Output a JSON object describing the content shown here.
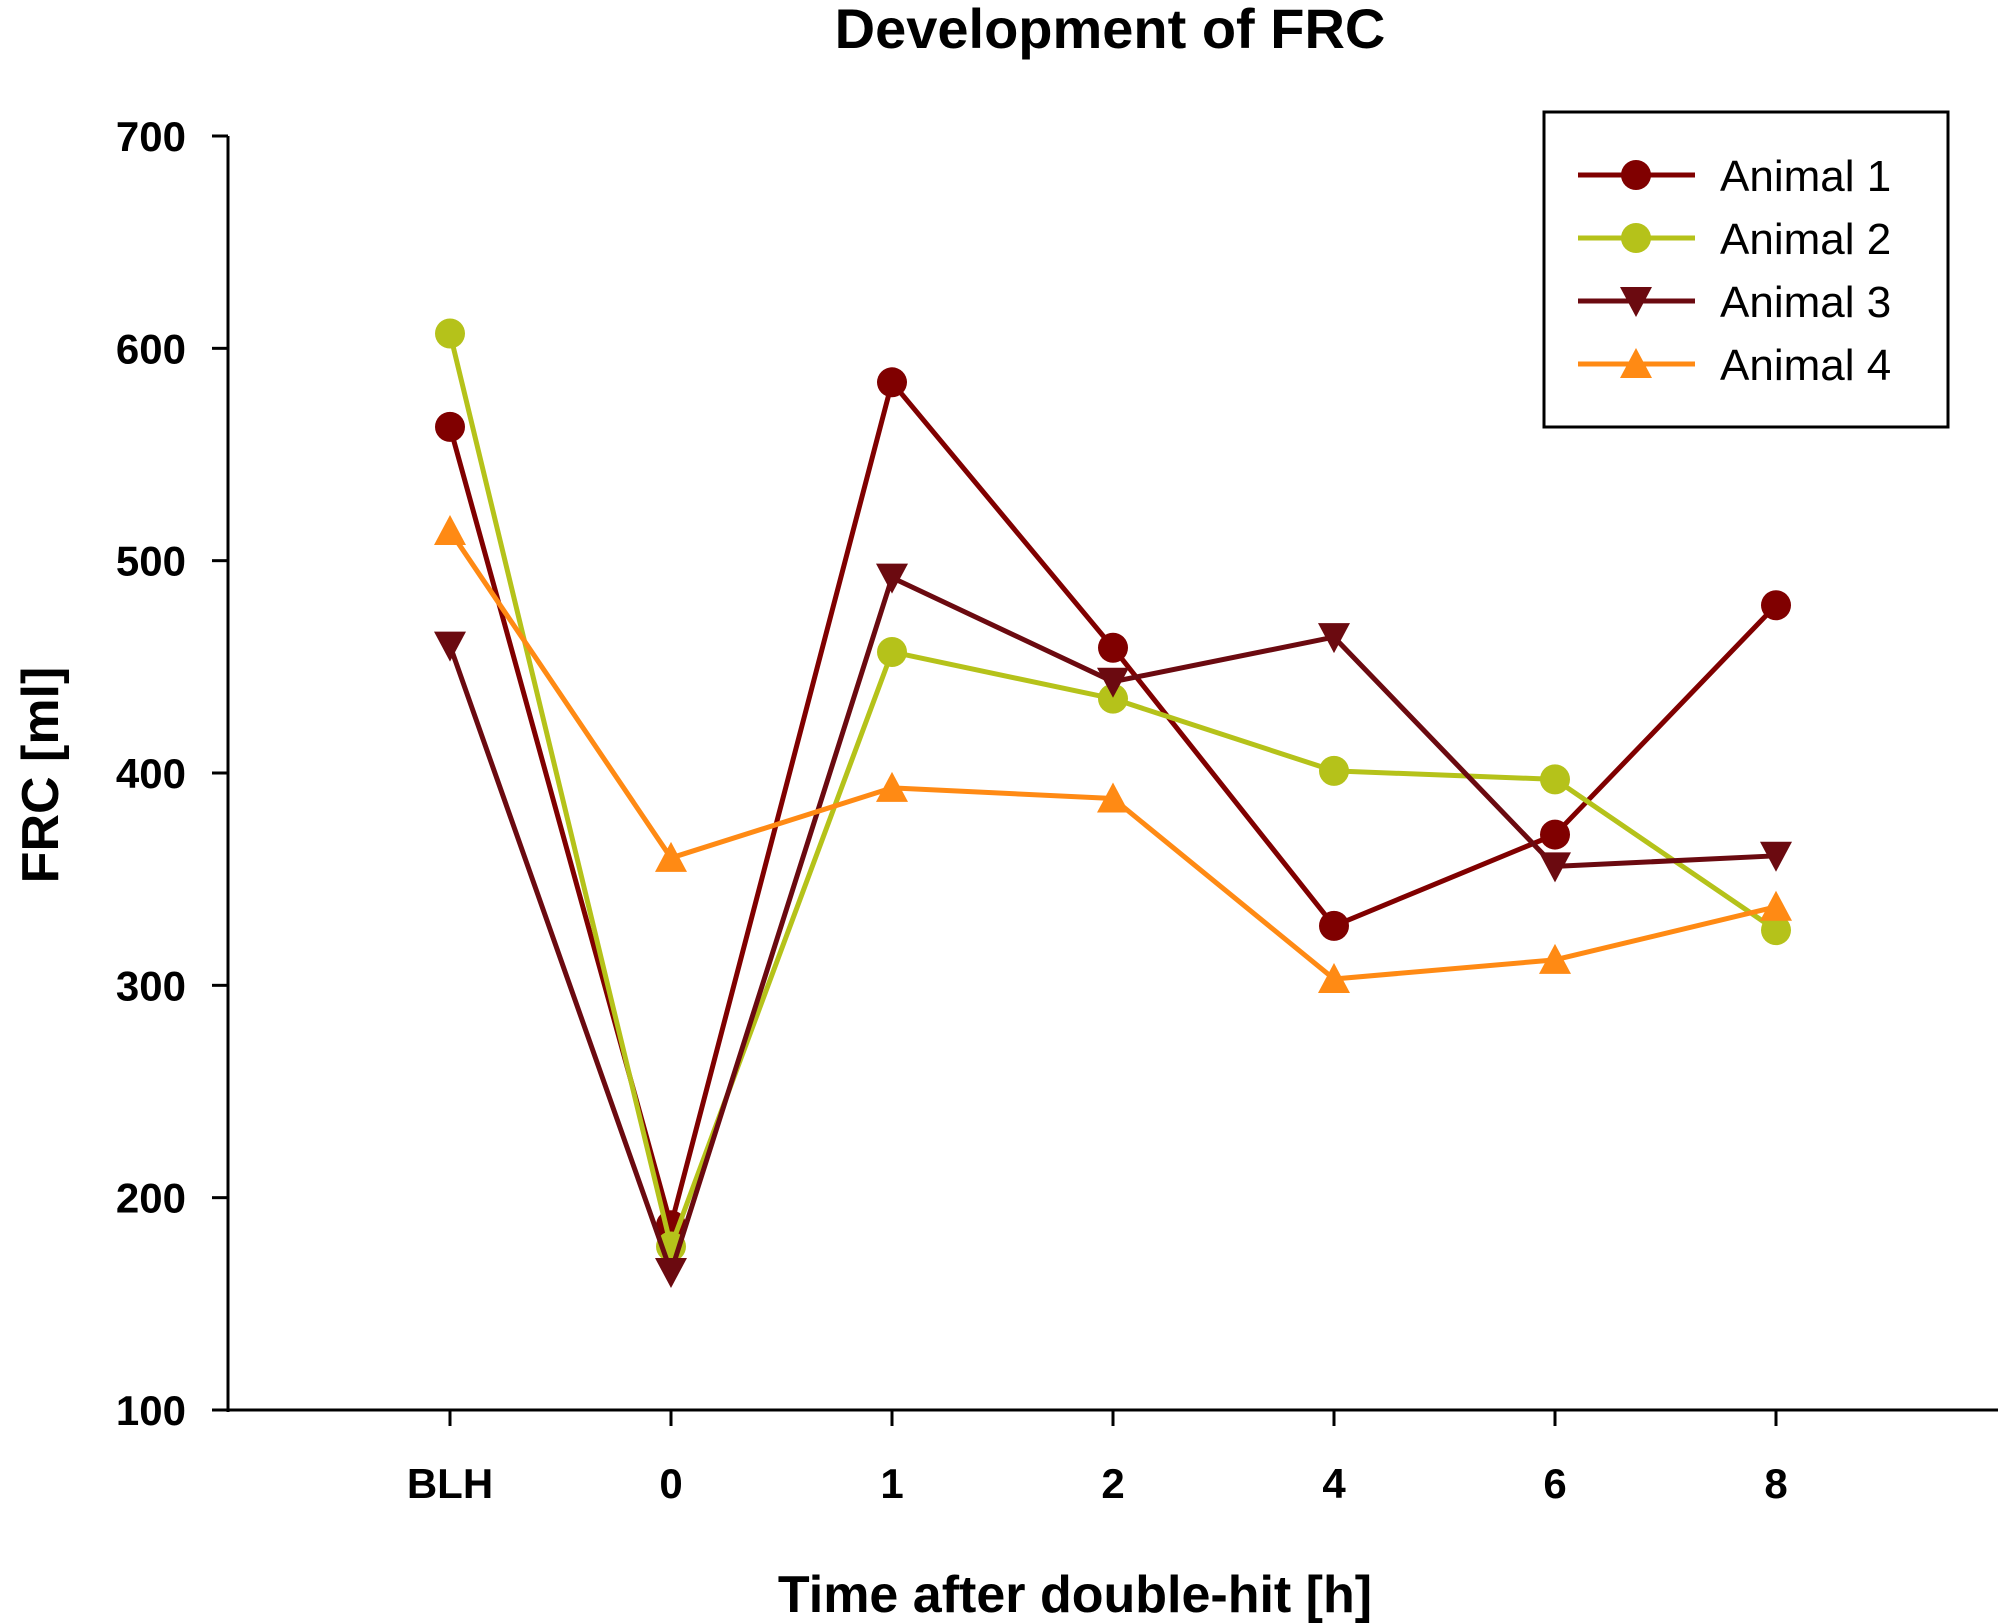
{
  "chart_data": {
    "type": "line",
    "title": "Development of FRC",
    "xlabel": "Time after double-hit [h]",
    "ylabel": "FRC [ml]",
    "categories": [
      "BLH",
      "0",
      "1",
      "2",
      "4",
      "6",
      "8"
    ],
    "ylim": [
      100,
      700
    ],
    "yticks": [
      100,
      200,
      300,
      400,
      500,
      600,
      700
    ],
    "grid": false,
    "legend_position": "top-right",
    "series": [
      {
        "name": "Animal 1",
        "marker": "circle",
        "color": "#800000",
        "values": [
          563,
          187,
          584,
          459,
          328,
          371,
          479
        ]
      },
      {
        "name": "Animal 2",
        "marker": "circle",
        "color": "#b5c21a",
        "values": [
          607,
          177,
          457,
          435,
          401,
          397,
          326
        ]
      },
      {
        "name": "Animal 3",
        "marker": "triangle-down",
        "color": "#6b0a10",
        "values": [
          460,
          165,
          492,
          443,
          464,
          356,
          361
        ]
      },
      {
        "name": "Animal 4",
        "marker": "triangle-up",
        "color": "#ff8a14",
        "values": [
          514,
          360,
          393,
          388,
          303,
          312,
          337
        ]
      }
    ]
  }
}
